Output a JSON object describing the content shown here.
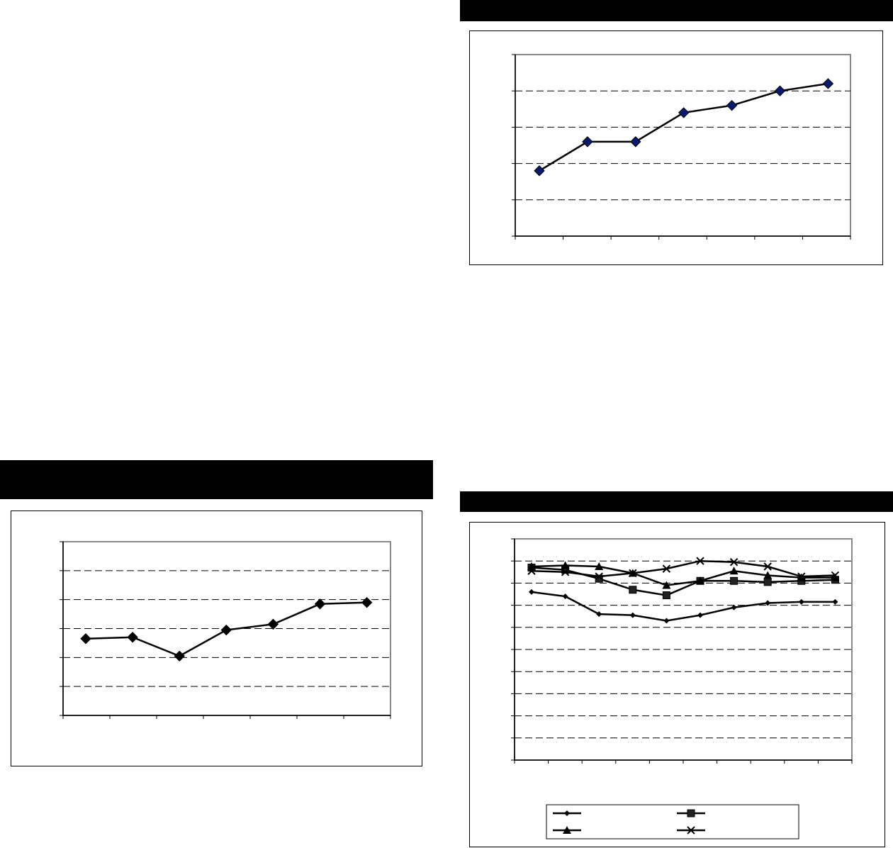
{
  "page": {
    "bars": [
      {
        "name": "section-header-bar-top-right",
        "text": ""
      },
      {
        "name": "section-header-bar-bottom-left",
        "text": ""
      },
      {
        "name": "section-header-bar-bottom-right",
        "text": ""
      }
    ]
  },
  "chart_data": [
    {
      "type": "line",
      "title": "",
      "xlabel": "",
      "ylabel": "",
      "ylim": [
        0,
        5
      ],
      "grid": "horizontal-dashed",
      "categories": [
        "",
        "",
        "",
        "",
        "",
        "",
        ""
      ],
      "series": [
        {
          "values": [
            1.8,
            2.6,
            2.6,
            3.4,
            3.6,
            4.0,
            4.2
          ],
          "color": "#0a1a6e",
          "marker": "diamond"
        }
      ]
    },
    {
      "type": "line",
      "title": "",
      "xlabel": "",
      "ylabel": "",
      "ylim": [
        0,
        6
      ],
      "grid": "horizontal-dashed",
      "categories": [
        "",
        "",
        "",
        "",
        "",
        "",
        ""
      ],
      "series": [
        {
          "values": [
            2.65,
            2.7,
            2.05,
            2.95,
            3.15,
            3.85,
            3.9
          ],
          "color": "#000000",
          "marker": "diamond"
        }
      ]
    },
    {
      "type": "line",
      "title": "",
      "xlabel": "",
      "ylabel": "",
      "ylim": [
        0,
        10
      ],
      "grid": "horizontal-dashed",
      "legend": "bottom",
      "categories": [
        "",
        "",
        "",
        "",
        "",
        "",
        "",
        "",
        "",
        ""
      ],
      "series": [
        {
          "name": "",
          "marker": "diamond",
          "values": [
            7.6,
            7.4,
            6.6,
            6.55,
            6.3,
            6.55,
            6.9,
            7.1,
            7.15,
            7.15
          ]
        },
        {
          "name": "",
          "marker": "square",
          "values": [
            8.7,
            8.6,
            8.2,
            7.7,
            7.45,
            8.1,
            8.1,
            8.05,
            8.1,
            8.15
          ]
        },
        {
          "name": "",
          "marker": "triangle",
          "values": [
            8.75,
            8.8,
            8.75,
            8.45,
            7.9,
            8.1,
            8.55,
            8.35,
            8.25,
            8.25
          ]
        },
        {
          "name": "",
          "marker": "x",
          "values": [
            8.55,
            8.5,
            8.3,
            8.45,
            8.65,
            9.0,
            8.95,
            8.75,
            8.3,
            8.35
          ]
        }
      ]
    }
  ]
}
